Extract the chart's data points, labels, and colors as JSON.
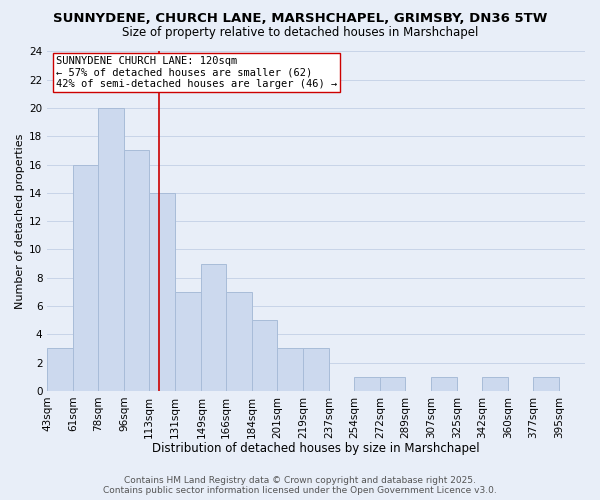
{
  "title": "SUNNYDENE, CHURCH LANE, MARSHCHAPEL, GRIMSBY, DN36 5TW",
  "subtitle": "Size of property relative to detached houses in Marshchapel",
  "xlabel": "Distribution of detached houses by size in Marshchapel",
  "ylabel": "Number of detached properties",
  "bin_edges": [
    43,
    61,
    78,
    96,
    113,
    131,
    149,
    166,
    184,
    201,
    219,
    237,
    254,
    272,
    289,
    307,
    325,
    342,
    360,
    377,
    395
  ],
  "bar_heights": [
    3,
    16,
    20,
    17,
    14,
    7,
    9,
    7,
    5,
    3,
    3,
    0,
    1,
    1,
    0,
    1,
    0,
    1,
    0,
    1
  ],
  "bar_color": "#ccd9ee",
  "bar_edgecolor": "#a8bcd8",
  "bar_linewidth": 0.7,
  "vline_x": 120,
  "vline_color": "#cc0000",
  "vline_linewidth": 1.2,
  "annotation_line1": "SUNNYDENE CHURCH LANE: 120sqm",
  "annotation_line2": "← 57% of detached houses are smaller (62)",
  "annotation_line3": "42% of semi-detached houses are larger (46) →",
  "annotation_box_edgecolor": "#cc0000",
  "annotation_box_facecolor": "#ffffff",
  "ylim": [
    0,
    24
  ],
  "yticks": [
    0,
    2,
    4,
    6,
    8,
    10,
    12,
    14,
    16,
    18,
    20,
    22,
    24
  ],
  "grid_color": "#c8d4e8",
  "background_color": "#e8eef8",
  "footer_line1": "Contains HM Land Registry data © Crown copyright and database right 2025.",
  "footer_line2": "Contains public sector information licensed under the Open Government Licence v3.0.",
  "title_fontsize": 9.5,
  "subtitle_fontsize": 8.5,
  "xlabel_fontsize": 8.5,
  "ylabel_fontsize": 8,
  "tick_fontsize": 7.5,
  "annotation_fontsize": 7.5,
  "footer_fontsize": 6.5
}
